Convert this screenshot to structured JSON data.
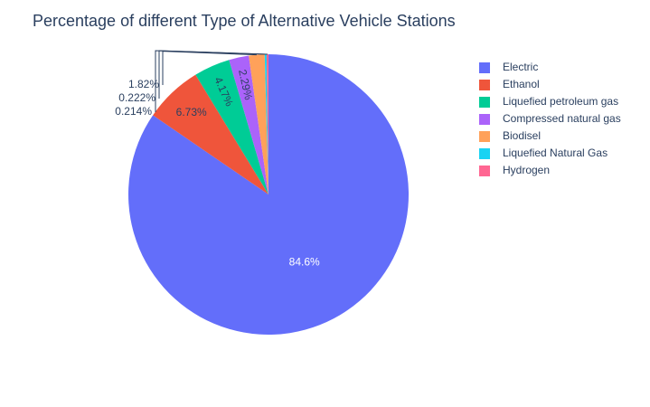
{
  "chart_data": {
    "type": "pie",
    "title": "Percentage of different Type of Alternative Vehicle Stations",
    "labels": [
      "Electric",
      "Ethanol",
      "Liquefied petroleum gas",
      "Compressed natural gas",
      "Biodisel",
      "Liquefied Natural Gas",
      "Hydrogen"
    ],
    "values": [
      84.6,
      6.73,
      4.17,
      2.29,
      1.82,
      0.222,
      0.214
    ],
    "value_labels": [
      "84.6%",
      "6.73%",
      "4.17%",
      "2.29%",
      "1.82%",
      "0.222%",
      "0.214%"
    ],
    "colors": [
      "#636efa",
      "#EF553B",
      "#00cc96",
      "#ab63fa",
      "#FFA15A",
      "#19d3f3",
      "#FF6692"
    ],
    "legend_position": "top-right",
    "direction": "clockwise",
    "start_angle": "12 o'clock"
  }
}
